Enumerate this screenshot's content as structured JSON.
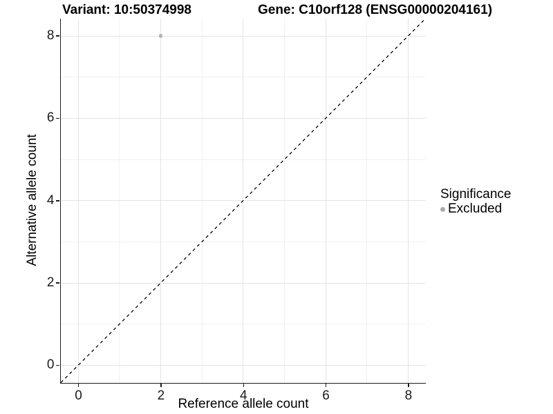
{
  "titles": {
    "left": "Variant: 10:50374998",
    "right": "Gene: C10orf128 (ENSG00000204161)"
  },
  "chart_data": {
    "type": "scatter",
    "title": "Variant: 10:50374998 / Gene: C10orf128 (ENSG00000204161)",
    "x_axis": {
      "label": "Reference allele count",
      "ticks": [
        0,
        2,
        4,
        6,
        8
      ],
      "minor_gridlines": [
        1,
        3,
        5,
        7
      ],
      "range": [
        -0.42,
        8.42
      ]
    },
    "y_axis": {
      "label": "Alternative allele count",
      "ticks": [
        0,
        2,
        4,
        6,
        8
      ],
      "minor_gridlines": [
        1,
        3,
        5,
        7
      ],
      "range": [
        -0.42,
        8.42
      ]
    },
    "points": [
      {
        "x": 2,
        "y": 8,
        "series": "Excluded"
      }
    ],
    "reference_line": {
      "kind": "identity",
      "from": [
        -0.42,
        -0.42
      ],
      "to": [
        8.42,
        8.42
      ],
      "style": "dashed",
      "color": "#000000"
    },
    "legend": {
      "title": "Significance",
      "position": "right",
      "items": [
        {
          "label": "Excluded",
          "color": "#aaaaaa"
        }
      ]
    },
    "grid": true,
    "colors": {
      "point": "#b4b4b4",
      "grid_major": "#e3e3e3",
      "grid_minor": "#f1f1f1",
      "axis_line": "#1a1a1a",
      "tick": "#1a1a1a",
      "text": "#000000"
    }
  }
}
